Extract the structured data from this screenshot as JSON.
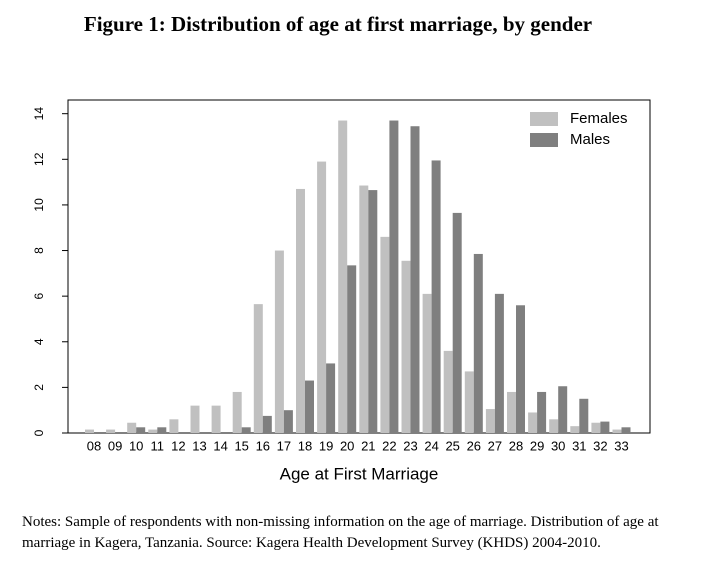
{
  "chart_data": {
    "type": "bar",
    "title": "Figure 1: Distribution of age at first marriage, by gender",
    "x_label": "Age at First Marriage",
    "categories": [
      "08",
      "09",
      "10",
      "11",
      "12",
      "13",
      "14",
      "15",
      "16",
      "17",
      "18",
      "19",
      "20",
      "21",
      "22",
      "23",
      "24",
      "25",
      "26",
      "27",
      "28",
      "29",
      "30",
      "31",
      "32",
      "33"
    ],
    "series": [
      {
        "name": "Females",
        "color": "#c0c0c0",
        "values": [
          0.15,
          0.15,
          0.45,
          0.15,
          0.6,
          1.2,
          1.2,
          1.8,
          5.65,
          8.0,
          10.7,
          11.9,
          13.7,
          10.85,
          8.6,
          7.55,
          6.1,
          3.6,
          2.7,
          1.05,
          1.8,
          0.9,
          0.6,
          0.3,
          0.45,
          0.15
        ]
      },
      {
        "name": "Males",
        "color": "#7f7f7f",
        "values": [
          0,
          0,
          0.25,
          0.25,
          0,
          0,
          0,
          0.25,
          0.75,
          1.0,
          2.3,
          3.05,
          7.35,
          10.65,
          13.7,
          13.45,
          11.95,
          9.65,
          7.85,
          6.1,
          5.6,
          1.8,
          2.05,
          1.5,
          0.5,
          0.25
        ]
      }
    ],
    "ylim": [
      0,
      14.6
    ],
    "yticks": [
      0,
      2,
      4,
      6,
      8,
      10,
      12,
      14
    ],
    "legend": "top-right"
  },
  "notes": "Notes: Sample of respondents with non-missing information on the age of marriage. Distribution of age at marriage in Kagera, Tanzania. Source: Kagera Health Development Survey (KHDS) 2004-2010."
}
